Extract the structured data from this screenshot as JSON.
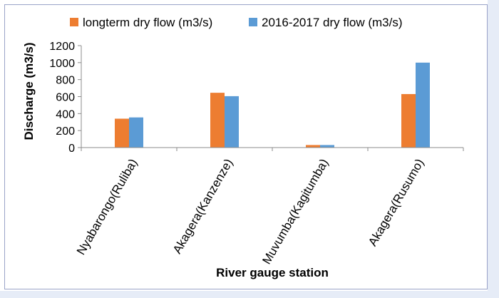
{
  "chart_data": {
    "type": "bar",
    "title": "",
    "xlabel": "River gauge station",
    "ylabel": "Discharge (m3/s)",
    "ylim": [
      0,
      1200
    ],
    "yticks": [
      0,
      200,
      400,
      600,
      800,
      1000,
      1200
    ],
    "categories": [
      "Nyabarongo(Ruliba)",
      "Akagera(Kanzenze)",
      "Muvumba(Kagitumba)",
      "Akagera(Rusumo)"
    ],
    "series": [
      {
        "name": "longterm dry flow (m3/s)",
        "color": "#ed7d31",
        "values": [
          340,
          645,
          30,
          630
        ]
      },
      {
        "name": "2016-2017 dry flow (m3/s)",
        "color": "#5b9bd5",
        "values": [
          355,
          605,
          30,
          1000
        ]
      }
    ],
    "grid": false,
    "legend_position": "top"
  }
}
